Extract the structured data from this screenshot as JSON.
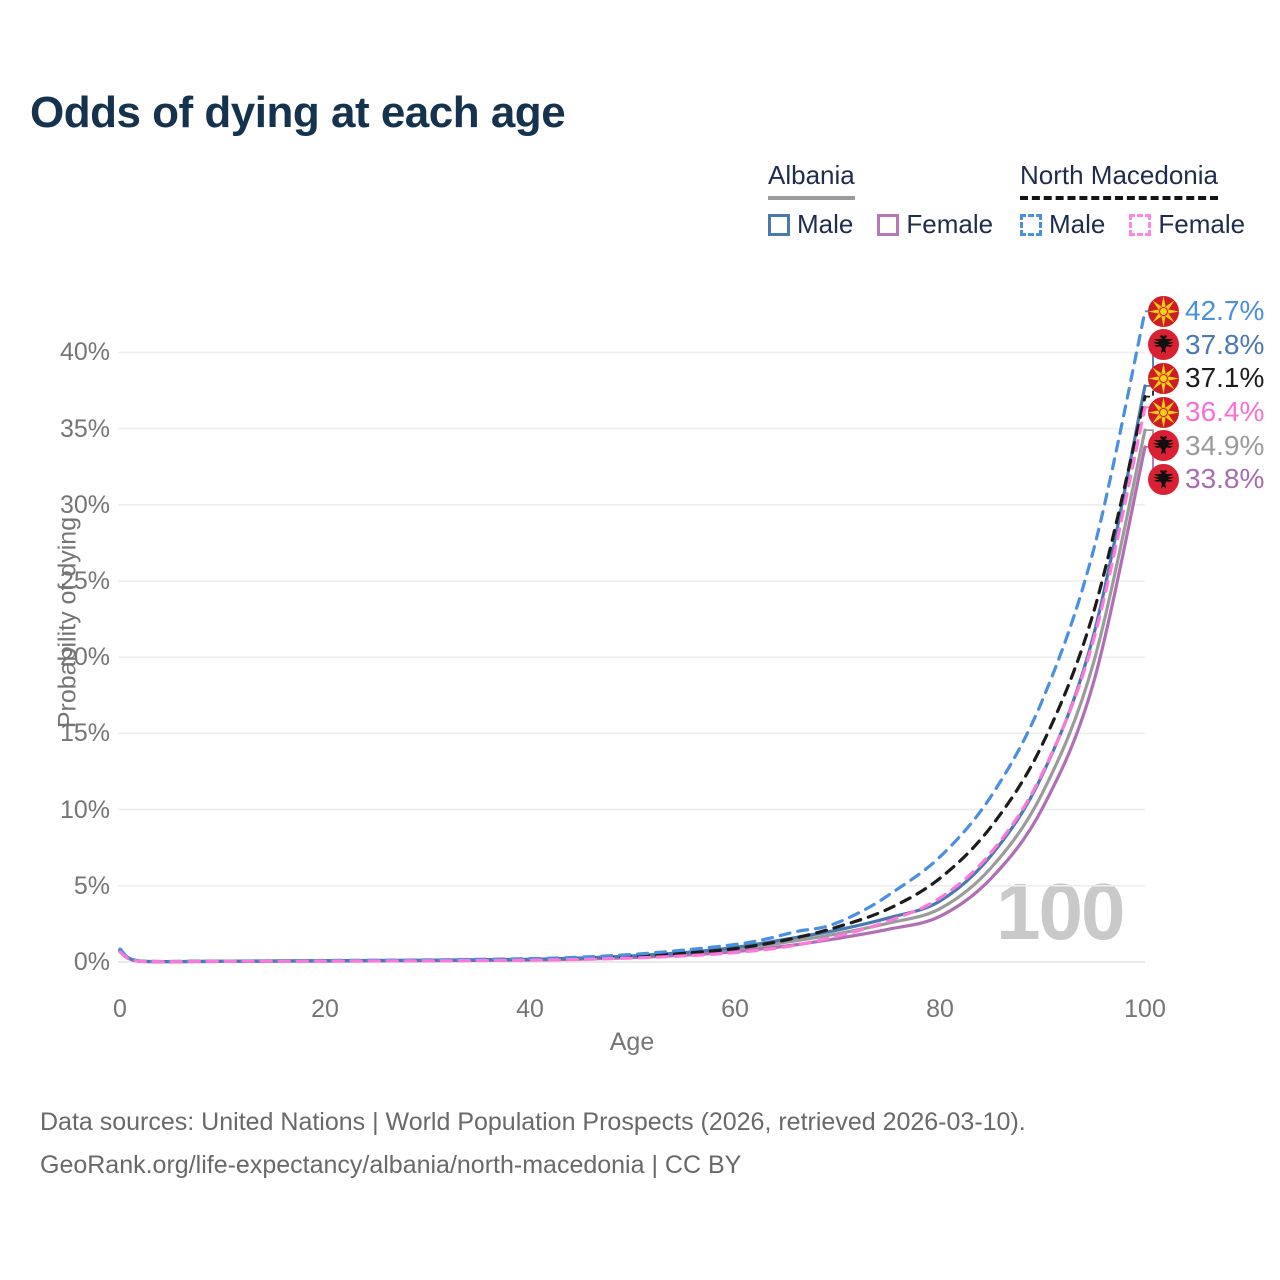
{
  "title": "Odds of dying at each age",
  "legend": {
    "groups": [
      {
        "label": "Albania",
        "underline_style": "solid-gray",
        "items": [
          {
            "label": "Male"
          },
          {
            "label": "Female"
          }
        ]
      },
      {
        "label": "North Macedonia",
        "underline_style": "dashed-black",
        "items": [
          {
            "label": "Male"
          },
          {
            "label": "Female"
          }
        ]
      }
    ]
  },
  "watermark_age": "100",
  "footer": {
    "line1": "Data sources: United Nations | World Population Prospects (2026, retrieved 2026-03-10).",
    "line2": "GeoRank.org/life-expectancy/albania/north-macedonia | CC BY"
  },
  "colors": {
    "title": "#15324e",
    "legend_text": "#1e2d4d",
    "axis_text": "#757575",
    "grid": "#ededed",
    "zero_line": "#e2e2e2",
    "watermark": "#c9c9c9",
    "footer_text": "#696969",
    "flag_mk_red": "#d01c24",
    "flag_mk_yellow": "#f7d117",
    "flag_al_red": "#da2032"
  },
  "chart_data": {
    "type": "line",
    "title": "Odds of dying at each age",
    "xlabel": "Age",
    "ylabel": "Probability of dying",
    "xlim": [
      0,
      100
    ],
    "ylim_pct": [
      0,
      43.5
    ],
    "grid": "horizontal-only",
    "xticks": {
      "values": [
        0,
        20,
        40,
        60,
        80,
        100
      ],
      "labels": [
        "0",
        "20",
        "40",
        "60",
        "80",
        "100"
      ]
    },
    "yticks": {
      "values": [
        0,
        5,
        10,
        15,
        20,
        25,
        30,
        35,
        40
      ],
      "labels": [
        "0%",
        "5%",
        "10%",
        "15%",
        "20%",
        "25%",
        "30%",
        "35%",
        "40%"
      ]
    },
    "series": [
      {
        "id": "al_total",
        "name": "Albania — Total",
        "country": "Albania",
        "sex": "total",
        "color": "#9b9b9b",
        "dash": false,
        "points": [
          [
            0,
            0.75
          ],
          [
            2,
            0.04
          ],
          [
            10,
            0.04
          ],
          [
            20,
            0.08
          ],
          [
            30,
            0.11
          ],
          [
            40,
            0.16
          ],
          [
            45,
            0.23
          ],
          [
            50,
            0.35
          ],
          [
            55,
            0.54
          ],
          [
            60,
            0.82
          ],
          [
            65,
            1.3
          ],
          [
            70,
            1.85
          ],
          [
            75,
            2.55
          ],
          [
            80,
            3.5
          ],
          [
            85,
            6.2
          ],
          [
            90,
            11.1
          ],
          [
            95,
            19.7
          ],
          [
            100,
            34.9
          ]
        ]
      },
      {
        "id": "al_female",
        "name": "Albania — Female",
        "country": "Albania",
        "sex": "female",
        "color": "#b06fb5",
        "dash": false,
        "points": [
          [
            0,
            0.7
          ],
          [
            2,
            0.04
          ],
          [
            10,
            0.04
          ],
          [
            20,
            0.06
          ],
          [
            30,
            0.09
          ],
          [
            40,
            0.13
          ],
          [
            45,
            0.19
          ],
          [
            50,
            0.29
          ],
          [
            55,
            0.45
          ],
          [
            60,
            0.68
          ],
          [
            65,
            1.05
          ],
          [
            70,
            1.55
          ],
          [
            75,
            2.15
          ],
          [
            80,
            3.0
          ],
          [
            85,
            5.5
          ],
          [
            90,
            10.1
          ],
          [
            95,
            18.4
          ],
          [
            100,
            33.8
          ]
        ]
      },
      {
        "id": "al_male",
        "name": "Albania — Male",
        "country": "Albania",
        "sex": "male",
        "color": "#4a79b2",
        "dash": false,
        "points": [
          [
            0,
            0.8
          ],
          [
            2,
            0.05
          ],
          [
            10,
            0.05
          ],
          [
            20,
            0.09
          ],
          [
            30,
            0.12
          ],
          [
            40,
            0.18
          ],
          [
            45,
            0.26
          ],
          [
            50,
            0.4
          ],
          [
            55,
            0.62
          ],
          [
            60,
            0.95
          ],
          [
            65,
            1.5
          ],
          [
            70,
            2.1
          ],
          [
            75,
            2.9
          ],
          [
            80,
            4.0
          ],
          [
            85,
            7.0
          ],
          [
            90,
            12.3
          ],
          [
            95,
            21.5
          ],
          [
            100,
            37.8
          ]
        ]
      },
      {
        "id": "nm_total",
        "name": "North Macedonia — Total",
        "country": "North Macedonia",
        "sex": "total",
        "color": "#1c1c1c",
        "dash": true,
        "points": [
          [
            0,
            0.75
          ],
          [
            2,
            0.05
          ],
          [
            10,
            0.05
          ],
          [
            20,
            0.08
          ],
          [
            30,
            0.11
          ],
          [
            40,
            0.17
          ],
          [
            45,
            0.24
          ],
          [
            50,
            0.37
          ],
          [
            55,
            0.58
          ],
          [
            60,
            0.88
          ],
          [
            65,
            1.45
          ],
          [
            70,
            2.3
          ],
          [
            75,
            3.5
          ],
          [
            80,
            5.5
          ],
          [
            85,
            8.9
          ],
          [
            90,
            14.3
          ],
          [
            95,
            23.0
          ],
          [
            100,
            37.1
          ]
        ]
      },
      {
        "id": "nm_male",
        "name": "North Macedonia — Male",
        "country": "North Macedonia",
        "sex": "male",
        "color": "#4a90e2",
        "dash": true,
        "points": [
          [
            0,
            0.85
          ],
          [
            2,
            0.06
          ],
          [
            10,
            0.06
          ],
          [
            20,
            0.1
          ],
          [
            30,
            0.14
          ],
          [
            40,
            0.22
          ],
          [
            45,
            0.32
          ],
          [
            50,
            0.5
          ],
          [
            55,
            0.78
          ],
          [
            60,
            1.15
          ],
          [
            63,
            1.5
          ],
          [
            66,
            2.0
          ],
          [
            69,
            2.35
          ],
          [
            72,
            3.2
          ],
          [
            75,
            4.4
          ],
          [
            80,
            6.9
          ],
          [
            85,
            10.9
          ],
          [
            90,
            17.2
          ],
          [
            95,
            27.1
          ],
          [
            100,
            42.7
          ]
        ]
      },
      {
        "id": "nm_female",
        "name": "North Macedonia — Female",
        "country": "North Macedonia",
        "sex": "female",
        "color": "#fb7ad9",
        "dash": true,
        "points": [
          [
            0,
            0.65
          ],
          [
            2,
            0.04
          ],
          [
            10,
            0.04
          ],
          [
            20,
            0.06
          ],
          [
            30,
            0.08
          ],
          [
            40,
            0.12
          ],
          [
            45,
            0.17
          ],
          [
            50,
            0.26
          ],
          [
            55,
            0.4
          ],
          [
            60,
            0.62
          ],
          [
            65,
            1.0
          ],
          [
            70,
            1.7
          ],
          [
            75,
            2.7
          ],
          [
            80,
            4.2
          ],
          [
            85,
            7.2
          ],
          [
            90,
            12.4
          ],
          [
            95,
            21.2
          ],
          [
            100,
            36.4
          ]
        ]
      }
    ],
    "end_labels": [
      {
        "series": "nm_male",
        "text": "42.7%",
        "flag": "mk",
        "color": "#4a90e2"
      },
      {
        "series": "al_male",
        "text": "37.8%",
        "flag": "al",
        "color": "#4a79b2"
      },
      {
        "series": "nm_total",
        "text": "37.1%",
        "flag": "mk",
        "color": "#1c1c1c"
      },
      {
        "series": "nm_female",
        "text": "36.4%",
        "flag": "mk",
        "color": "#fb6fd5"
      },
      {
        "series": "al_total",
        "text": "34.9%",
        "flag": "al",
        "color": "#9b9b9b"
      },
      {
        "series": "al_female",
        "text": "33.8%",
        "flag": "al",
        "color": "#a96cb0"
      }
    ]
  }
}
